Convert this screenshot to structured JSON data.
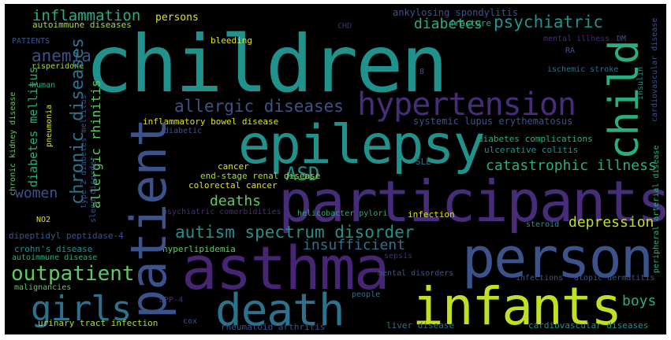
{
  "palette": {
    "background": "#000000",
    "purple": "#472c7a",
    "indigo": "#3b528b",
    "blue": "#2c728e",
    "teal": "#21918c",
    "green": "#28ae80",
    "lightgreen": "#5ec962",
    "lime": "#addc30",
    "yellow": "#dde318",
    "darkpurple": "#482475"
  },
  "words": [
    {
      "text": "children",
      "color": "#21918c"
    },
    {
      "text": "participants",
      "color": "#472c7a"
    },
    {
      "text": "person",
      "color": "#3b528b"
    },
    {
      "text": "asthma",
      "color": "#482475"
    },
    {
      "text": "epilepsy",
      "color": "#21918c"
    },
    {
      "text": "infants",
      "color": "#c2df23"
    },
    {
      "text": "death",
      "color": "#2c728e"
    },
    {
      "text": "patient",
      "color": "#3b528b"
    },
    {
      "text": "child",
      "color": "#28ae80"
    },
    {
      "text": "hypertension",
      "color": "#472c7a"
    },
    {
      "text": "girls",
      "color": "#2c728e"
    },
    {
      "text": "ASD",
      "color": "#21918c"
    },
    {
      "text": "allergic diseases",
      "color": "#3b528b"
    },
    {
      "text": "autism spectrum disorder",
      "color": "#21918c"
    },
    {
      "text": "outpatient",
      "color": "#5ec962"
    },
    {
      "text": "chronic diseases",
      "color": "#2c728e"
    },
    {
      "text": "catastrophic illness",
      "color": "#28ae80"
    },
    {
      "text": "inflammation",
      "color": "#28ae80"
    },
    {
      "text": "anemia",
      "color": "#3b528b"
    },
    {
      "text": "diabetes",
      "color": "#28ae80"
    },
    {
      "text": "psychiatric",
      "color": "#21918c"
    },
    {
      "text": "depression",
      "color": "#c2df23"
    },
    {
      "text": "deaths",
      "color": "#5ec962"
    },
    {
      "text": "women",
      "color": "#3b528b"
    },
    {
      "text": "insufficient",
      "color": "#2c728e"
    },
    {
      "text": "boys",
      "color": "#28ae80"
    },
    {
      "text": "allergic rhinitis",
      "color": "#5ec962"
    },
    {
      "text": "diabetes mellitus",
      "color": "#28ae80"
    },
    {
      "text": "systemic lupus erythematosus",
      "color": "#3b528b"
    },
    {
      "text": "autoimmune diseases",
      "color": "#a8db34"
    },
    {
      "text": "persons",
      "color": "#dde318"
    },
    {
      "text": "ankylosing spondylitis",
      "color": "#3b528b"
    },
    {
      "text": "fracture",
      "color": "#28ae80"
    },
    {
      "text": "mental illness",
      "color": "#472c7a"
    },
    {
      "text": "DM",
      "color": "#3b528b"
    },
    {
      "text": "RA",
      "color": "#3b528b"
    },
    {
      "text": "ischemic stroke",
      "color": "#2c728e"
    },
    {
      "text": "PATIENTS",
      "color": "#3b528b"
    },
    {
      "text": "risperidone",
      "color": "#a8db34"
    },
    {
      "text": "bleeding",
      "color": "#dde318"
    },
    {
      "text": "CHD",
      "color": "#472c7a"
    },
    {
      "text": "human",
      "color": "#28ae80"
    },
    {
      "text": "pneumonia",
      "color": "#dde318"
    },
    {
      "text": "inflammatory bowel disease",
      "color": "#dde318"
    },
    {
      "text": "diabetic",
      "color": "#3b528b"
    },
    {
      "text": "diabetes complications",
      "color": "#28ae80"
    },
    {
      "text": "ulcerative colitis",
      "color": "#21918c"
    },
    {
      "text": "SLE",
      "color": "#2c728e"
    },
    {
      "text": "cancer",
      "color": "#dde318"
    },
    {
      "text": "end-stage renal disease",
      "color": "#a8db34"
    },
    {
      "text": "colorectal cancer",
      "color": "#dde318"
    },
    {
      "text": "psychiatric comorbidities",
      "color": "#472c7a"
    },
    {
      "text": "helicobacter pylori",
      "color": "#28ae80"
    },
    {
      "text": "infection",
      "color": "#dde318"
    },
    {
      "text": "steroid",
      "color": "#21918c"
    },
    {
      "text": "NO2",
      "color": "#dde318"
    },
    {
      "text": "dipeptidyl peptidase-4",
      "color": "#3b528b"
    },
    {
      "text": "crohn's disease",
      "color": "#21918c"
    },
    {
      "text": "hyperlipidemia",
      "color": "#5ec962"
    },
    {
      "text": "autoimmune disease",
      "color": "#28ae80"
    },
    {
      "text": "sepsis",
      "color": "#472c7a"
    },
    {
      "text": "mental disorders",
      "color": "#3b528b"
    },
    {
      "text": "infections",
      "color": "#3b528b"
    },
    {
      "text": "atopic dermatitis",
      "color": "#3b528b"
    },
    {
      "text": "malignancies",
      "color": "#5ec962"
    },
    {
      "text": "DPP-4",
      "color": "#472c7a"
    },
    {
      "text": "people",
      "color": "#2c728e"
    },
    {
      "text": "urinary tract infection",
      "color": "#a8db34"
    },
    {
      "text": "cox",
      "color": "#3b528b"
    },
    {
      "text": "rheumatoid arthritis",
      "color": "#3b528b"
    },
    {
      "text": "liver disease",
      "color": "#2c728e"
    },
    {
      "text": "cardiovascular diseases",
      "color": "#21918c"
    },
    {
      "text": "chronic kidney disease",
      "color": "#5ec962"
    },
    {
      "text": "type 2 diabetes mellitus",
      "color": "#3b528b"
    },
    {
      "text": "sleep disorder",
      "color": "#3b528b"
    },
    {
      "text": "insulin",
      "color": "#21918c"
    },
    {
      "text": "cardiovascular disease",
      "color": "#3b528b"
    },
    {
      "text": "peripheral arterial disease",
      "color": "#28ae80"
    },
    {
      "text": "8",
      "color": "#3b528b"
    }
  ]
}
